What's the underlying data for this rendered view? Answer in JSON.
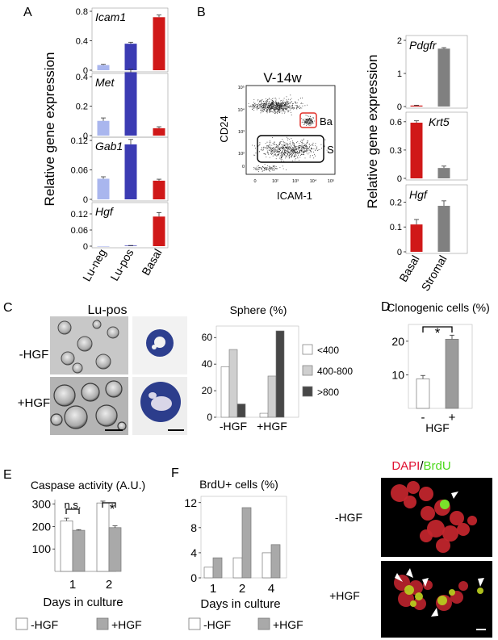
{
  "panels": {
    "A": {
      "letter": "A",
      "ylabel": "Relative gene expression",
      "categories": [
        "Lu-neg",
        "Lu-pos",
        "Basal"
      ],
      "colors": [
        "#a9b6ee",
        "#3b3bb3",
        "#d01818"
      ],
      "charts": [
        {
          "gene": "Icam1",
          "ylim": [
            0,
            0.8
          ],
          "ticks": [
            "0",
            "0.4",
            "0.8"
          ],
          "tickvals": [
            0,
            0.4,
            0.8
          ],
          "values": [
            0.07,
            0.36,
            0.72
          ],
          "err": [
            0.01,
            0.02,
            0.03
          ]
        },
        {
          "gene": "Met",
          "ylim": [
            0,
            0.4
          ],
          "ticks": [
            "0",
            "0.2",
            "0.4"
          ],
          "tickvals": [
            0,
            0.2,
            0.4
          ],
          "values": [
            0.1,
            0.43,
            0.05
          ],
          "err": [
            0.02,
            0.02,
            0.01
          ]
        },
        {
          "gene": "Gab1",
          "ylim": [
            0,
            0.12
          ],
          "ticks": [
            "0",
            "0.06",
            "0.12"
          ],
          "tickvals": [
            0,
            0.06,
            0.12
          ],
          "values": [
            0.042,
            0.112,
            0.038
          ],
          "err": [
            0.004,
            0.01,
            0.003
          ]
        },
        {
          "gene": "Hgf",
          "ylim": [
            0,
            0.15
          ],
          "ticks": [
            "0",
            "0.06",
            "0.12"
          ],
          "tickvals": [
            0,
            0.06,
            0.12
          ],
          "values": [
            0,
            0.002,
            0.11
          ],
          "err": [
            0,
            0.0005,
            0.015
          ]
        }
      ]
    },
    "B": {
      "letter": "B",
      "facs_title": "V-14w",
      "facs_ylabel": "CD24",
      "facs_xlabel": "ICAM-1",
      "gate_ba": "Ba",
      "gate_s": "S",
      "facs_yticks": [
        "10⁵",
        "10⁴",
        "10³",
        "10²",
        "0"
      ],
      "facs_xticks": [
        "0",
        "10²",
        "10³",
        "10⁴",
        "10⁵"
      ],
      "ylabel": "Relative gene expression",
      "categories": [
        "Basal",
        "Stromal"
      ],
      "colors": [
        "#d01818",
        "#808080"
      ],
      "charts": [
        {
          "gene": "Pdgfr",
          "ylim": [
            0,
            2
          ],
          "ticks": [
            "0",
            "1",
            "2"
          ],
          "tickvals": [
            0,
            1,
            2
          ],
          "values": [
            0.03,
            1.75
          ],
          "err": [
            0.01,
            0.03
          ]
        },
        {
          "gene": "Krt5",
          "ylim": [
            0,
            0.65
          ],
          "ticks": [
            "0",
            "0.3",
            "0.6"
          ],
          "tickvals": [
            0,
            0.3,
            0.6
          ],
          "values": [
            0.59,
            0.11
          ],
          "err": [
            0.02,
            0.02
          ]
        },
        {
          "gene": "Hgf",
          "ylim": [
            0,
            0.25
          ],
          "ticks": [
            "0",
            "0.1",
            "0.2"
          ],
          "tickvals": [
            0,
            0.1,
            0.2
          ],
          "values": [
            0.11,
            0.185
          ],
          "err": [
            0.02,
            0.02
          ]
        }
      ]
    },
    "C": {
      "letter": "C",
      "photo_title": "Lu-pos",
      "row_labels": [
        "-HGF",
        "+HGF"
      ],
      "chart_title": "Sphere (%)",
      "categories": [
        "-HGF",
        "+HGF"
      ],
      "ylim": [
        0,
        65
      ],
      "ticks": [
        "0",
        "20",
        "40",
        "60"
      ],
      "tickvals": [
        0,
        20,
        40,
        60
      ],
      "series": [
        {
          "name": "<400",
          "color": "#ffffff",
          "values": [
            38,
            3
          ]
        },
        {
          "name": "400-800",
          "color": "#cfcfcf",
          "values": [
            51,
            31
          ]
        },
        {
          "name": ">800",
          "color": "#474747",
          "values": [
            10,
            65
          ]
        }
      ]
    },
    "D": {
      "letter": "D",
      "title": "Clonogenic cells (%)",
      "categories": [
        "-",
        "+"
      ],
      "xlabel": "HGF",
      "ylim": [
        0,
        25
      ],
      "ticks": [
        "10",
        "20"
      ],
      "tickvals": [
        10,
        20
      ],
      "values": [
        8.8,
        20.6
      ],
      "err": [
        1.0,
        1.2
      ],
      "colors": [
        "#ffffff",
        "#9b9b9b"
      ],
      "sig": "*"
    },
    "E": {
      "letter": "E",
      "title": "Caspase activity (A.U.)",
      "categories": [
        "1",
        "2"
      ],
      "xlabel": "Days in culture",
      "ylim": [
        0,
        320
      ],
      "ticks": [
        "100",
        "200",
        "300"
      ],
      "tickvals": [
        100,
        200,
        300
      ],
      "series": [
        {
          "name": "-HGF",
          "color": "#ffffff",
          "values": [
            225,
            305
          ],
          "err": [
            12,
            8
          ]
        },
        {
          "name": "+HGF",
          "color": "#a9a9a9",
          "values": [
            183,
            195
          ],
          "err": [
            3,
            8
          ]
        }
      ],
      "sig": [
        "n.s.",
        "*"
      ]
    },
    "F": {
      "letter": "F",
      "title": "BrdU+ cells (%)",
      "categories": [
        "1",
        "2",
        "4"
      ],
      "xlabel": "Days in culture",
      "ylim": [
        0,
        13
      ],
      "ticks": [
        "0",
        "4",
        "8",
        "12"
      ],
      "tickvals": [
        0,
        4,
        8,
        12
      ],
      "series": [
        {
          "name": "-HGF",
          "color": "#ffffff",
          "values": [
            1.7,
            3.2,
            4.0
          ]
        },
        {
          "name": "+HGF",
          "color": "#a9a9a9",
          "values": [
            3.2,
            11.2,
            5.3
          ]
        }
      ],
      "micro_title_a": "DAPI",
      "micro_title_sep": "/",
      "micro_title_b": "BrdU",
      "micro_labels": [
        "-HGF",
        "+HGF"
      ],
      "title_colors": {
        "dapi": "#e01030",
        "brdu": "#4cd91c"
      }
    }
  }
}
